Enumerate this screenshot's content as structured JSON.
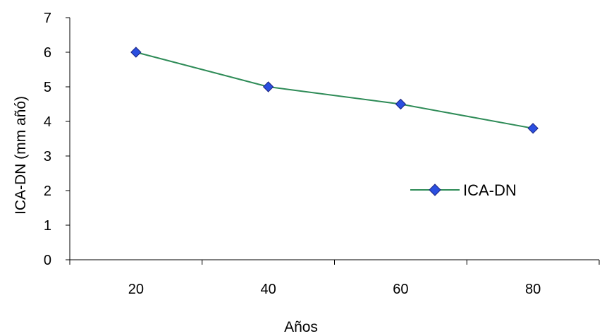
{
  "chart_data": {
    "type": "line",
    "x": [
      20,
      40,
      60,
      80
    ],
    "series": [
      {
        "name": "ICA-DN",
        "values": [
          6.0,
          5.0,
          4.5,
          3.8
        ],
        "color": "#2e8b57",
        "marker_color": "#2b4fe0",
        "marker": "diamond"
      }
    ],
    "xlabel": "Años",
    "ylabel": "ICA-DN (mm añó)",
    "x_ticks": [
      "20",
      "40",
      "60",
      "80"
    ],
    "y_ticks": [
      "0",
      "1",
      "2",
      "3",
      "4",
      "5",
      "6",
      "7"
    ],
    "ylim": [
      0,
      7
    ],
    "grid": false,
    "legend_position": "center-right"
  }
}
